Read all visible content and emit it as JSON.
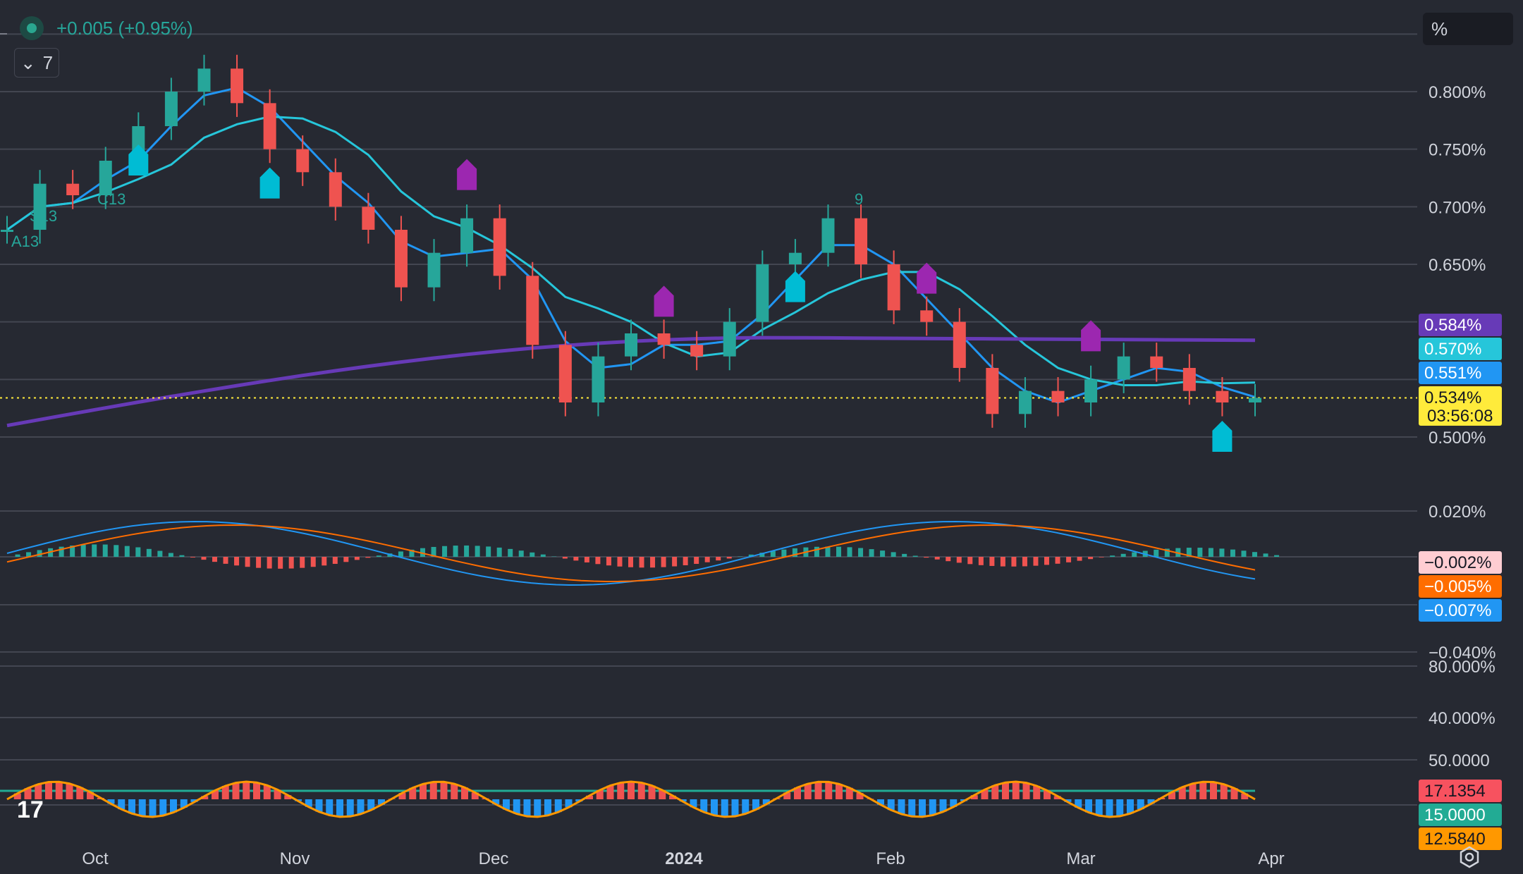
{
  "header": {
    "change_text": "+0.005 (+0.95%)",
    "collapse_count": "7",
    "scale_mode": "%"
  },
  "icons": {
    "symbol_status": "status-dot-icon",
    "collapse": "chevron-down-icon",
    "settings": "chart-settings-icon",
    "logo": "tradingview-logo"
  },
  "colors": {
    "background": "#262932",
    "up": "#26a69a",
    "down": "#ef5350",
    "ma_fast": "#2196f3",
    "ma_mid": "#26c6da",
    "ma_slow": "#673ab7",
    "macd_line": "#2196f3",
    "signal_line": "#ff6d00",
    "rsi_line": "#ff9800",
    "rsi_level": "#22ab94",
    "last_price": "#ffeb3b",
    "buy_marker": "#00bcd4",
    "sell_marker": "#9c27b0"
  },
  "chart_data": [
    {
      "type": "candlestick",
      "x_ticks": [
        "Oct",
        "Nov",
        "Dec",
        "2024",
        "Feb",
        "Mar",
        "Apr"
      ],
      "y_ticks": [
        "0.800%",
        "0.750%",
        "0.700%",
        "0.650%",
        "0.500%"
      ],
      "y_range": [
        0.48,
        0.86
      ],
      "ohlc_close_approx": [
        0.68,
        0.72,
        0.71,
        0.74,
        0.77,
        0.8,
        0.82,
        0.79,
        0.75,
        0.73,
        0.7,
        0.68,
        0.63,
        0.66,
        0.69,
        0.64,
        0.58,
        0.53,
        0.57,
        0.59,
        0.58,
        0.57,
        0.6,
        0.65,
        0.66,
        0.69,
        0.65,
        0.61,
        0.6,
        0.56,
        0.52,
        0.54,
        0.53,
        0.55,
        0.57,
        0.56,
        0.54,
        0.53,
        0.534
      ],
      "series": [
        {
          "name": "MA fast",
          "last": 0.551
        },
        {
          "name": "MA mid",
          "last": 0.57
        },
        {
          "name": "MA slow",
          "last": 0.584
        }
      ],
      "price_labels": [
        {
          "text": "0.584%",
          "color": "#673ab7"
        },
        {
          "text": "0.570%",
          "color": "#26c6da"
        },
        {
          "text": "0.551%",
          "color": "#2196f3"
        },
        {
          "text": "0.534%",
          "color": "#ffeb3b",
          "countdown": "03:56:08"
        }
      ],
      "annotations": [
        "C13",
        "S13",
        "A13",
        "9"
      ]
    },
    {
      "type": "macd",
      "y_ticks": [
        "0.020%",
        "−0.040%"
      ],
      "y_range": [
        -0.04,
        0.03
      ],
      "values_labels": [
        {
          "text": "−0.002%",
          "color": "#ffcdd2"
        },
        {
          "text": "−0.005%",
          "color": "#ff6d00"
        },
        {
          "text": "−0.007%",
          "color": "#2196f3"
        }
      ]
    },
    {
      "type": "oscillator",
      "y_ticks": [
        "80.000%",
        "40.000%",
        "50.0000"
      ],
      "values_labels": [
        {
          "text": "17.1354",
          "color": "#f7525f"
        },
        {
          "text": "15.0000",
          "color": "#22ab94"
        },
        {
          "text": "12.5840",
          "color": "#ff9800"
        }
      ]
    }
  ]
}
